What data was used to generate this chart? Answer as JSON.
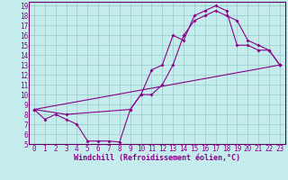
{
  "xlabel": "Windchill (Refroidissement éolien,°C)",
  "bg_color": "#c5eced",
  "grid_color": "#9dcfcf",
  "line_color": "#880088",
  "spine_color": "#660066",
  "xlim": [
    -0.5,
    23.5
  ],
  "ylim": [
    5,
    19.4
  ],
  "xticks": [
    0,
    1,
    2,
    3,
    4,
    5,
    6,
    7,
    8,
    9,
    10,
    11,
    12,
    13,
    14,
    15,
    16,
    17,
    18,
    19,
    20,
    21,
    22,
    23
  ],
  "yticks": [
    5,
    6,
    7,
    8,
    9,
    10,
    11,
    12,
    13,
    14,
    15,
    16,
    17,
    18,
    19
  ],
  "line1_x": [
    0,
    1,
    2,
    3,
    4,
    5,
    6,
    7,
    8,
    9,
    10,
    11,
    12,
    13,
    14,
    15,
    16,
    17,
    18,
    19,
    20,
    21,
    22,
    23
  ],
  "line1_y": [
    8.5,
    7.5,
    8.0,
    7.5,
    7.0,
    5.3,
    5.3,
    5.3,
    5.2,
    8.5,
    10.0,
    12.5,
    13.0,
    16.0,
    15.5,
    18.0,
    18.5,
    19.0,
    18.5,
    15.0,
    15.0,
    14.5,
    14.5,
    13.0
  ],
  "line2_x": [
    0,
    3,
    9,
    10,
    11,
    12,
    13,
    14,
    15,
    16,
    17,
    18,
    19,
    20,
    21,
    22,
    23
  ],
  "line2_y": [
    8.5,
    8.0,
    8.5,
    10.0,
    10.0,
    11.0,
    13.0,
    16.0,
    17.5,
    18.0,
    18.5,
    18.0,
    17.5,
    15.5,
    15.0,
    14.5,
    13.0
  ],
  "line3_x": [
    0,
    23
  ],
  "line3_y": [
    8.5,
    13.0
  ],
  "tick_fontsize": 5.5,
  "xlabel_fontsize": 6.0
}
